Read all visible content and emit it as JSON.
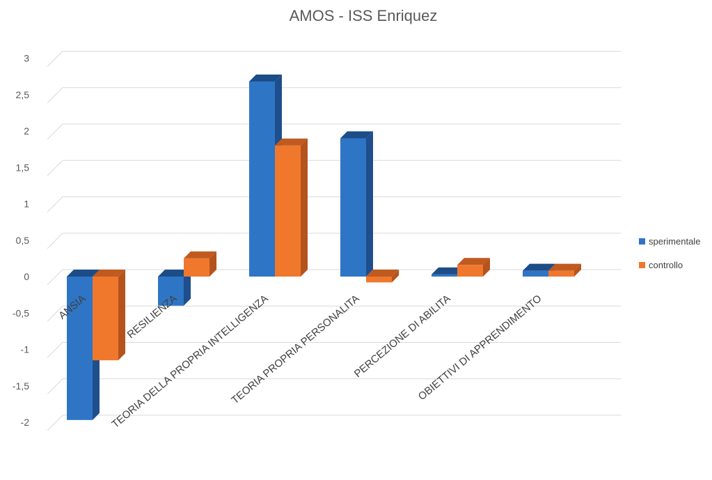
{
  "chart_data": {
    "type": "bar",
    "title": "AMOS - ISS Enriquez",
    "xlabel": "",
    "ylabel": "",
    "ylim": [
      -2,
      3
    ],
    "yticks": [
      3,
      2.5,
      2,
      1.5,
      1,
      0.5,
      0,
      -0.5,
      -1,
      -1.5,
      -2
    ],
    "ytick_labels": [
      "3",
      "2,5",
      "2",
      "1,5",
      "1",
      "0,5",
      "0",
      "-0,5",
      "-1",
      "-1,5",
      "-2"
    ],
    "grid": true,
    "legend_position": "right",
    "categories": [
      "ANSIA",
      "RESILIENZA",
      "TEORIA DELLA PROPRIA INTELLIGENZA",
      "TEORIA PROPRIA PERSONALITA",
      "PERCEZIONE DI ABILITA",
      "OBIETTIVI DI APPRENDIMENTO"
    ],
    "series": [
      {
        "name": "sperimentale",
        "color": "#2e75c6",
        "side": "#1f4e8c",
        "top": "#1c4d86",
        "values": [
          -1.97,
          -0.4,
          2.68,
          1.9,
          0.03,
          0.08
        ]
      },
      {
        "name": "controllo",
        "color": "#f0782d",
        "side": "#b5531c",
        "top": "#c05a20",
        "values": [
          -1.15,
          0.25,
          1.8,
          -0.08,
          0.16,
          0.08
        ]
      }
    ]
  }
}
